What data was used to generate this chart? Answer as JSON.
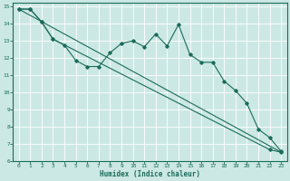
{
  "title": "",
  "xlabel": "Humidex (Indice chaleur)",
  "bg_color": "#cce8e4",
  "grid_color": "#ffffff",
  "line_color": "#1a6b5a",
  "xlim": [
    -0.5,
    23.5
  ],
  "ylim": [
    6,
    15.2
  ],
  "xticks": [
    0,
    1,
    2,
    3,
    4,
    5,
    6,
    7,
    8,
    9,
    10,
    11,
    12,
    13,
    14,
    15,
    16,
    17,
    18,
    19,
    20,
    21,
    22,
    23
  ],
  "yticks": [
    6,
    7,
    8,
    9,
    10,
    11,
    12,
    13,
    14,
    15
  ],
  "line1_x": [
    0,
    1,
    2,
    3,
    4,
    5,
    6,
    7,
    8,
    9,
    10,
    11,
    12,
    13,
    14,
    15,
    16,
    17,
    18,
    19,
    20,
    21,
    22,
    23
  ],
  "line1_y": [
    14.85,
    14.85,
    14.1,
    13.1,
    12.75,
    11.85,
    11.5,
    11.5,
    12.3,
    12.85,
    13.0,
    12.65,
    13.4,
    12.7,
    13.95,
    12.2,
    11.75,
    11.75,
    10.65,
    10.1,
    9.35,
    7.85,
    7.35,
    6.55
  ],
  "line2_x": [
    0,
    1,
    2,
    3,
    22,
    23
  ],
  "line2_y": [
    14.85,
    14.85,
    14.1,
    13.1,
    6.65,
    6.5
  ],
  "line3_x": [
    0,
    23
  ],
  "line3_y": [
    14.85,
    6.5
  ]
}
